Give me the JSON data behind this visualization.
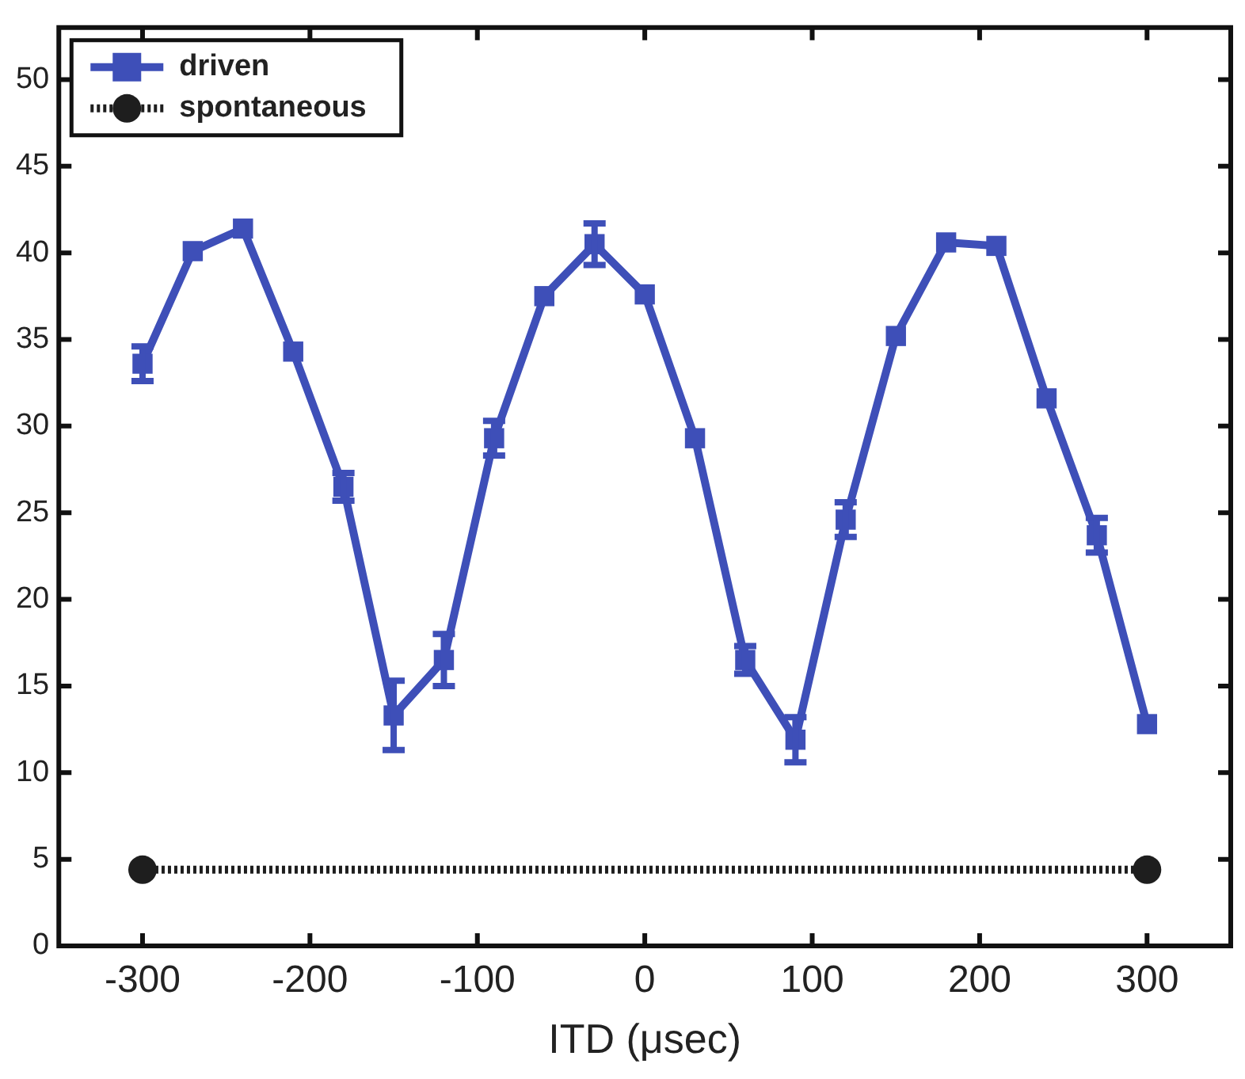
{
  "chart_data": {
    "type": "line",
    "xlabel": "ITD (μsec)",
    "x": [
      -300,
      -270,
      -240,
      -210,
      -180,
      -150,
      -120,
      -90,
      -60,
      -30,
      0,
      30,
      60,
      90,
      120,
      150,
      180,
      210,
      240,
      270,
      300
    ],
    "series": [
      {
        "name": "driven",
        "color": "#3e4fb8",
        "marker": "square",
        "line_style": "solid",
        "values": [
          33.6,
          40.1,
          41.4,
          34.3,
          26.5,
          13.3,
          16.5,
          29.3,
          37.5,
          40.5,
          37.6,
          29.3,
          16.5,
          11.9,
          24.6,
          35.2,
          40.6,
          40.4,
          31.6,
          23.7,
          12.8
        ],
        "errors": [
          1,
          null,
          null,
          null,
          0.8,
          2,
          1.5,
          1,
          null,
          1.2,
          null,
          null,
          0.8,
          1.3,
          1,
          null,
          null,
          null,
          null,
          1,
          null
        ]
      },
      {
        "name": "spontaneous",
        "color": "#1e1e1e",
        "marker": "circle",
        "line_style": "dotted",
        "x": [
          -300,
          300
        ],
        "values": [
          4.4,
          4.4
        ]
      }
    ],
    "xlim": [
      -350,
      350
    ],
    "xticks": [
      -300,
      -200,
      -100,
      0,
      100,
      200,
      300
    ],
    "ylim": [
      0,
      53
    ],
    "yticks": [
      0,
      5,
      10,
      15,
      20,
      25,
      30,
      35,
      40,
      45,
      50
    ],
    "grid": false,
    "legend": "top left"
  }
}
